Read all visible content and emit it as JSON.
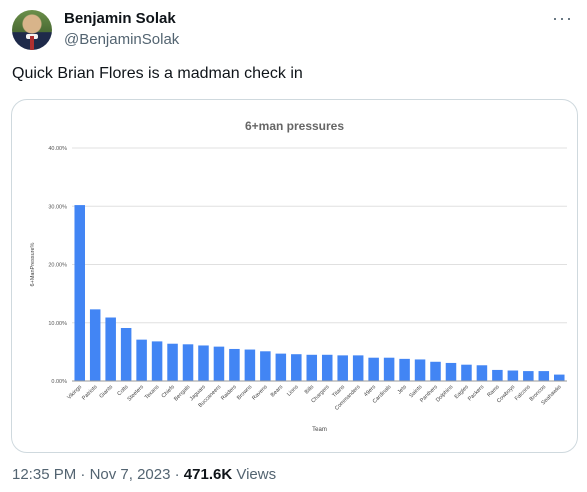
{
  "author": {
    "display_name": "Benjamin Solak",
    "handle": "@BenjaminSolak",
    "avatar_icon": "profile-photo"
  },
  "more_icon": "···",
  "tweet": {
    "text": "Quick Brian Flores is a madman check in"
  },
  "meta": {
    "time": "12:35 PM",
    "sep1": "·",
    "date": "Nov 7, 2023",
    "sep2": "·",
    "views_count": "471.6K",
    "views_label": "Views"
  },
  "colors": {
    "bar": "#4285f4",
    "grid": "#e0e0e0",
    "card_border": "#cfd9de",
    "secondary_text": "#536471"
  },
  "chart_data": {
    "type": "bar",
    "title": "6+man pressures",
    "xlabel": "Team",
    "ylabel": "6+ManPressure%",
    "ylim": [
      0,
      40
    ],
    "yticks": [
      "0.00%",
      "10.00%",
      "20.00%",
      "30.00%",
      "40.00%"
    ],
    "categories": [
      "Vikings",
      "Patriots",
      "Giants",
      "Colts",
      "Steelers",
      "Texans",
      "Chiefs",
      "Bengals",
      "Jaguars",
      "Buccaneers",
      "Raiders",
      "Browns",
      "Ravens",
      "Bears",
      "Lions",
      "Bills",
      "Chargers",
      "Titans",
      "Commanders",
      "49ers",
      "Cardinals",
      "Jets",
      "Saints",
      "Panthers",
      "Dolphins",
      "Eagles",
      "Packers",
      "Rams",
      "Cowboys",
      "Falcons",
      "Broncos",
      "Seahawks"
    ],
    "values": [
      30.2,
      12.3,
      10.9,
      9.1,
      7.1,
      6.8,
      6.4,
      6.3,
      6.1,
      5.9,
      5.5,
      5.4,
      5.1,
      4.7,
      4.6,
      4.5,
      4.5,
      4.4,
      4.4,
      4.0,
      4.0,
      3.8,
      3.7,
      3.3,
      3.1,
      2.8,
      2.7,
      1.9,
      1.8,
      1.7,
      1.7,
      1.1
    ],
    "grid": true
  }
}
